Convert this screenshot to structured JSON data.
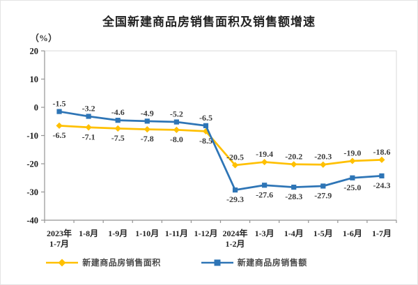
{
  "chart_data": {
    "type": "line",
    "title": "全国新建商品房销售面积及销售额增速",
    "ylabel": "（%）",
    "xlabel": "",
    "categories": [
      [
        "2023年",
        "1-7月"
      ],
      [
        "1-8月"
      ],
      [
        "1-9月"
      ],
      [
        "1-10月"
      ],
      [
        "1-11月"
      ],
      [
        "1-12月"
      ],
      [
        "2024年",
        "1-2月"
      ],
      [
        "1-3月"
      ],
      [
        "1-4月"
      ],
      [
        "1-5月"
      ],
      [
        "1-6月"
      ],
      [
        "1-7月"
      ]
    ],
    "series": [
      {
        "name": "新建商品房销售面积",
        "color": "#FFC000",
        "marker": "diamond",
        "values": [
          -6.5,
          -7.1,
          -7.5,
          -7.8,
          -8.0,
          -8.5,
          -20.5,
          -19.4,
          -20.2,
          -20.3,
          -19.0,
          -18.6
        ],
        "label_side": [
          "below",
          "below",
          "below",
          "below",
          "below",
          "below",
          "above",
          "above",
          "above",
          "above",
          "above",
          "above"
        ]
      },
      {
        "name": "新建商品房销售额",
        "color": "#2E75B6",
        "marker": "square",
        "values": [
          -1.5,
          -3.2,
          -4.6,
          -4.9,
          -5.2,
          -6.5,
          -29.3,
          -27.6,
          -28.3,
          -27.9,
          -25.0,
          -24.3
        ],
        "label_side": [
          "above",
          "above",
          "above",
          "above",
          "above",
          "above",
          "below",
          "below",
          "below",
          "below",
          "below",
          "below"
        ]
      }
    ],
    "ylim": [
      -40,
      20
    ],
    "yticks": [
      20,
      10,
      0,
      -10,
      -20,
      -30,
      -40
    ],
    "grid": false,
    "data_labels": true,
    "legend_position": "bottom",
    "label_color": "#3b3b3b",
    "tick_label_color": "#1a1a1a",
    "axis_color": "#949494",
    "plot_border_color": "#d9d9d9"
  }
}
